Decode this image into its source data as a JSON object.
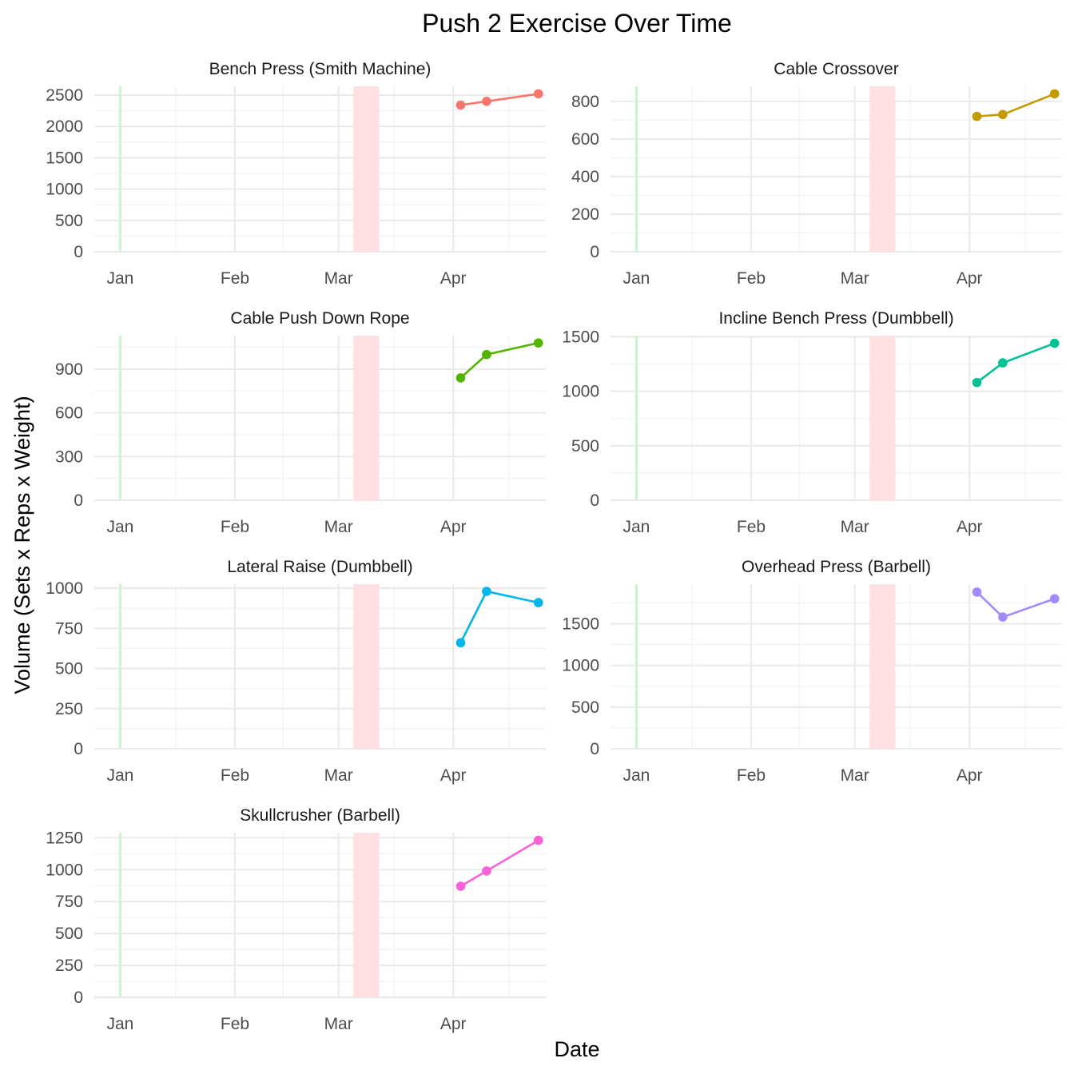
{
  "chart_data": {
    "type": "line",
    "title": "Push 2  Exercise Over Time",
    "xlabel": "Date",
    "ylabel": "Volume (Sets x Reps x Weight)",
    "x_ticks": [
      "Jan",
      "Feb",
      "Mar",
      "Apr"
    ],
    "xlim": [
      "2024-12-25",
      "2025-04-26"
    ],
    "grid": true,
    "shaded_regions": [
      {
        "start": "2025-01-01",
        "end": "2025-01-01",
        "color": "#ccf5cc"
      },
      {
        "start": "2025-03-05",
        "end": "2025-03-12",
        "color": "#ffe0e3"
      }
    ],
    "x_dates": [
      "2025-04-03",
      "2025-04-10",
      "2025-04-24"
    ],
    "panels": [
      {
        "name": "Bench Press (Smith Machine)",
        "color": "#F8766D",
        "values": [
          2340,
          2400,
          2520
        ],
        "ylim": [
          0,
          2640
        ],
        "y_ticks": [
          0,
          500,
          1000,
          1500,
          2000,
          2500
        ]
      },
      {
        "name": "Cable Crossover",
        "color": "#C49A00",
        "values": [
          720,
          730,
          840
        ],
        "ylim": [
          0,
          880
        ],
        "y_ticks": [
          0,
          200,
          400,
          600,
          800
        ]
      },
      {
        "name": "Cable Push Down Rope",
        "color": "#53B400",
        "values": [
          840,
          1000,
          1080
        ],
        "ylim": [
          0,
          1130
        ],
        "y_ticks": [
          0,
          300,
          600,
          900
        ]
      },
      {
        "name": "Incline Bench Press (Dumbbell)",
        "color": "#00C094",
        "values": [
          1080,
          1260,
          1440
        ],
        "ylim": [
          0,
          1510
        ],
        "y_ticks": [
          0,
          500,
          1000,
          1500
        ]
      },
      {
        "name": "Lateral Raise (Dumbbell)",
        "color": "#00B6EB",
        "values": [
          660,
          980,
          910
        ],
        "ylim": [
          0,
          1025
        ],
        "y_ticks": [
          0,
          250,
          500,
          750,
          1000
        ]
      },
      {
        "name": "Overhead Press (Barbell)",
        "color": "#A58AFF",
        "values": [
          1880,
          1580,
          1800
        ],
        "ylim": [
          0,
          1975
        ],
        "y_ticks": [
          0,
          500,
          1000,
          1500
        ]
      },
      {
        "name": "Skullcrusher (Barbell)",
        "color": "#FB61D7",
        "values": [
          870,
          990,
          1230
        ],
        "ylim": [
          0,
          1290
        ],
        "y_ticks": [
          0,
          250,
          500,
          750,
          1000,
          1250
        ]
      }
    ]
  }
}
